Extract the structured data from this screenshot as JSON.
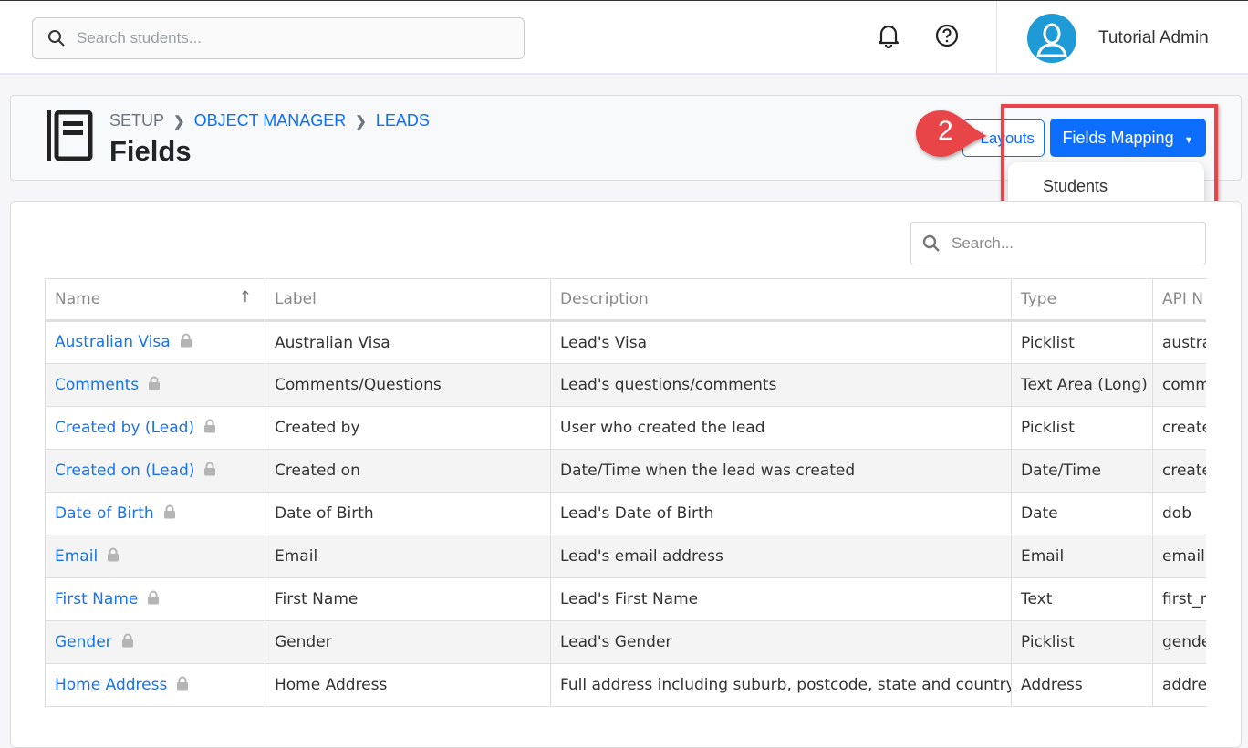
{
  "header": {
    "search_placeholder": "Search students...",
    "user_name": "Tutorial Admin"
  },
  "breadcrumb": {
    "items": [
      "SETUP",
      "OBJECT MANAGER",
      "LEADS"
    ]
  },
  "page_title": "Fields",
  "actions": {
    "layouts_label": "Layouts",
    "fields_mapping_label": "Fields Mapping",
    "dropdown_items": [
      "Students"
    ]
  },
  "annotation": {
    "step": "2",
    "color": "#e8444a"
  },
  "table": {
    "search_placeholder": "Search...",
    "columns": [
      "Name",
      "Label",
      "Description",
      "Type",
      "API N"
    ],
    "sort": {
      "column": "Name",
      "direction": "ascending"
    },
    "rows": [
      {
        "name": "Australian Visa",
        "label": "Australian Visa",
        "description": "Lead's Visa",
        "type": "Picklist",
        "api": "austra"
      },
      {
        "name": "Comments",
        "label": "Comments/Questions",
        "description": "Lead's questions/comments",
        "type": "Text Area (Long)",
        "api": "comm"
      },
      {
        "name": "Created by (Lead)",
        "label": "Created by",
        "description": "User who created the lead",
        "type": "Picklist",
        "api": "create"
      },
      {
        "name": "Created on (Lead)",
        "label": "Created on",
        "description": "Date/Time when the lead was created",
        "type": "Date/Time",
        "api": "create"
      },
      {
        "name": "Date of Birth",
        "label": "Date of Birth",
        "description": "Lead's Date of Birth",
        "type": "Date",
        "api": "dob"
      },
      {
        "name": "Email",
        "label": "Email",
        "description": "Lead's email address",
        "type": "Email",
        "api": "email"
      },
      {
        "name": "First Name",
        "label": "First Name",
        "description": "Lead's First Name",
        "type": "Text",
        "api": "first_n"
      },
      {
        "name": "Gender",
        "label": "Gender",
        "description": "Lead's Gender",
        "type": "Picklist",
        "api": "gende"
      },
      {
        "name": "Home Address",
        "label": "Home Address",
        "description": "Full address including suburb, postcode, state and country",
        "type": "Address",
        "api": "addre"
      }
    ]
  },
  "colors": {
    "primary": "#0d6efd",
    "link": "#1a73e8",
    "avatar": "#1e9ad6"
  }
}
